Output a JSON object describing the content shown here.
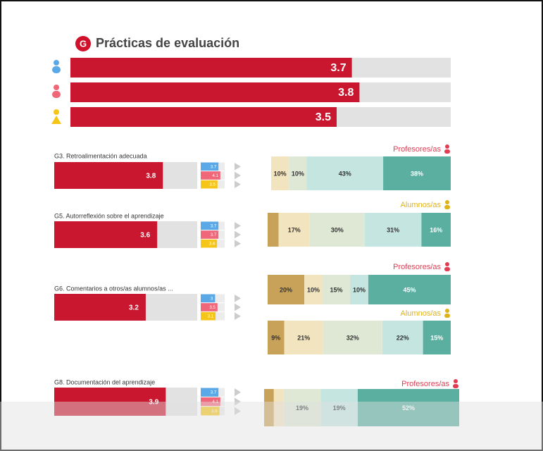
{
  "header": {
    "badge": "G",
    "title": "Prácticas de evaluación"
  },
  "summary": {
    "xlim": [
      0,
      5
    ],
    "color": "#c8172f",
    "values": [
      3.7,
      3.8,
      3.5
    ]
  },
  "group_colors": [
    "#5aa9e6",
    "#f0677a",
    "#f5c518"
  ],
  "items": [
    {
      "label": "G3. Retroalimentación adecuada",
      "value": 3.8,
      "group_values": [
        3.7,
        4.1,
        3.5
      ],
      "distributions": [
        {
          "label": "Profesores/as",
          "values": [
            10,
            10,
            43,
            38
          ],
          "value_labels": [
            "10%",
            "10%",
            "43%",
            "38%"
          ],
          "colors": [
            "#f3e4c0",
            "#dfe8d5",
            "#c5e5e0",
            "#5aafa1"
          ]
        }
      ]
    },
    {
      "label": "G5. Autorreflexión sobre el aprendizaje",
      "value": 3.6,
      "group_values": [
        3.7,
        3.7,
        3.4
      ],
      "distributions": [
        {
          "label": "Alumnos/as",
          "values": [
            6,
            17,
            30,
            31,
            16
          ],
          "value_labels": [
            null,
            "17%",
            "30%",
            "31%",
            "16%"
          ],
          "colors": [
            "#c9a25a",
            "#f3e4c0",
            "#dfe8d5",
            "#c5e5e0",
            "#5aafa1"
          ]
        }
      ]
    },
    {
      "label": "G6. Comentarios a otros/as alumnos/as ...",
      "value": 3.2,
      "group_values": [
        3,
        3.5,
        3.1
      ],
      "distributions": [
        {
          "label": "Profesores/as",
          "values": [
            20,
            10,
            15,
            10,
            45
          ],
          "value_labels": [
            "20%",
            "10%",
            "15%",
            "10%",
            "45%"
          ],
          "colors": [
            "#c9a25a",
            "#f3e4c0",
            "#dfe8d5",
            "#c5e5e0",
            "#5aafa1"
          ]
        },
        {
          "label": "Alumnos/as",
          "values": [
            9,
            21,
            32,
            22,
            15
          ],
          "value_labels": [
            "9%",
            "21%",
            "32%",
            "22%",
            "15%"
          ],
          "colors": [
            "#c9a25a",
            "#f3e4c0",
            "#dfe8d5",
            "#c5e5e0",
            "#5aafa1"
          ]
        }
      ]
    },
    {
      "label": "G8. Documentación del aprendizaje",
      "value": 3.9,
      "group_values": [
        3.7,
        4.1,
        3.9
      ],
      "distributions": [
        {
          "label": "Profesores/as",
          "values": [
            5,
            5,
            19,
            19,
            52
          ],
          "value_labels": [
            null,
            null,
            "19%",
            "19%",
            "52%"
          ],
          "colors": [
            "#c9a25a",
            "#f3e4c0",
            "#dfe8d5",
            "#c5e5e0",
            "#5aafa1"
          ]
        }
      ]
    }
  ]
}
